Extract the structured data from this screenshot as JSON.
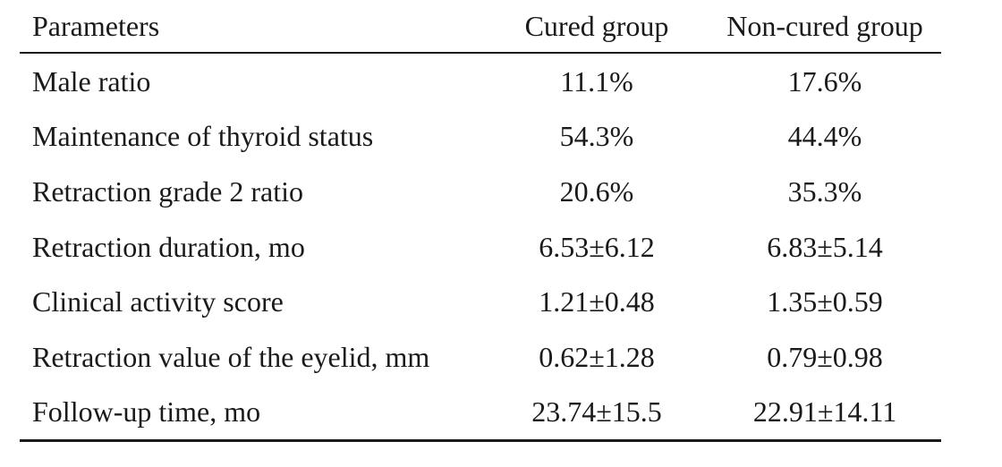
{
  "table": {
    "headers": [
      "Parameters",
      "Cured group",
      "Non-cured group"
    ],
    "rows": [
      {
        "parameter": "Male ratio",
        "cured": "11.1%",
        "noncured": "17.6%"
      },
      {
        "parameter": "Maintenance of thyroid status",
        "cured": "54.3%",
        "noncured": "44.4%"
      },
      {
        "parameter": "Retraction grade 2 ratio",
        "cured": "20.6%",
        "noncured": "35.3%"
      },
      {
        "parameter": "Retraction duration, mo",
        "cured": "6.53±6.12",
        "noncured": "6.83±5.14"
      },
      {
        "parameter": "Clinical activity score",
        "cured": "1.21±0.48",
        "noncured": "1.35±0.59"
      },
      {
        "parameter": "Retraction value of the eyelid, mm",
        "cured": "0.62±1.28",
        "noncured": "0.79±0.98"
      },
      {
        "parameter": "Follow-up time, mo",
        "cured": "23.74±15.5",
        "noncured": "22.91±14.11"
      }
    ]
  }
}
